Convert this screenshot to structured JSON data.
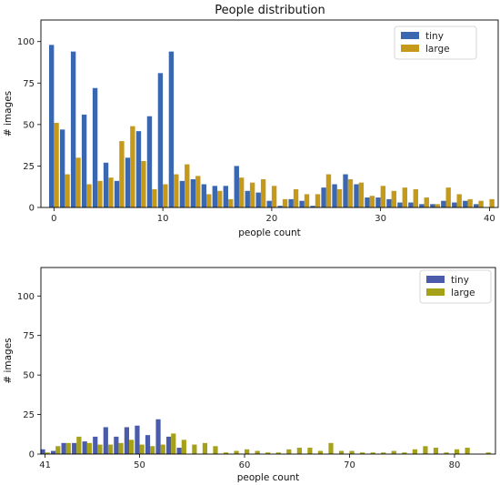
{
  "chart_data": [
    {
      "type": "bar",
      "title": "People distribution",
      "xlabel": "people count",
      "ylabel": "# images",
      "xlim": [
        -1.2,
        40.8
      ],
      "ylim": [
        0,
        113
      ],
      "xticks": [
        0,
        10,
        20,
        30,
        40
      ],
      "yticks": [
        0,
        25,
        50,
        75,
        100
      ],
      "legend_position": "top-right",
      "x": [
        0,
        1,
        2,
        3,
        4,
        5,
        6,
        7,
        8,
        9,
        10,
        11,
        12,
        13,
        14,
        15,
        16,
        17,
        18,
        19,
        20,
        21,
        22,
        23,
        24,
        25,
        26,
        27,
        28,
        29,
        30,
        31,
        32,
        33,
        34,
        35,
        36,
        37,
        38,
        39,
        40
      ],
      "series": [
        {
          "name": "tiny",
          "color": "#3b67b0",
          "values": [
            98,
            47,
            94,
            56,
            72,
            27,
            16,
            30,
            46,
            55,
            81,
            94,
            16,
            17,
            14,
            13,
            13,
            25,
            10,
            9,
            4,
            1,
            5,
            4,
            1,
            12,
            14,
            20,
            14,
            6,
            6,
            5,
            3,
            3,
            2,
            2,
            4,
            3,
            4,
            2,
            0
          ]
        },
        {
          "name": "large",
          "color": "#c59a1a",
          "values": [
            51,
            20,
            30,
            14,
            16,
            18,
            40,
            49,
            28,
            11,
            14,
            20,
            26,
            19,
            8,
            10,
            5,
            18,
            15,
            17,
            13,
            5,
            11,
            8,
            8,
            20,
            11,
            17,
            15,
            7,
            13,
            10,
            12,
            11,
            6,
            2,
            12,
            8,
            5,
            4,
            5
          ]
        }
      ]
    },
    {
      "type": "bar",
      "title": "",
      "xlabel": "people count",
      "ylabel": "# images",
      "xlim": [
        40.6,
        83.9
      ],
      "ylim": [
        0,
        118
      ],
      "xticks": [
        41,
        50,
        60,
        70,
        80
      ],
      "yticks": [
        0,
        25,
        50,
        75,
        100
      ],
      "legend_position": "top-right",
      "x": [
        41,
        42,
        43,
        44,
        45,
        46,
        47,
        48,
        49,
        50,
        51,
        52,
        53,
        54,
        55,
        56,
        57,
        58,
        59,
        60,
        61,
        62,
        63,
        64,
        65,
        66,
        67,
        68,
        69,
        70,
        71,
        72,
        73,
        74,
        75,
        76,
        77,
        78,
        79,
        80,
        81,
        82,
        83
      ],
      "series": [
        {
          "name": "tiny",
          "color": "#4a5bab",
          "values": [
            3,
            2,
            7,
            7,
            8,
            11,
            17,
            11,
            17,
            18,
            12,
            22,
            11,
            4,
            0,
            0,
            0,
            0,
            0,
            0,
            0,
            0,
            0,
            0,
            0,
            0,
            0,
            0,
            0,
            0,
            0,
            0,
            0,
            0,
            0,
            0,
            0,
            0,
            0,
            0,
            0,
            0,
            0
          ]
        },
        {
          "name": "large",
          "color": "#a5a118",
          "values": [
            1,
            5,
            7,
            11,
            7,
            6,
            6,
            7,
            9,
            6,
            5,
            6,
            13,
            9,
            6,
            7,
            5,
            1,
            2,
            3,
            2,
            1,
            1,
            3,
            4,
            4,
            2,
            7,
            2,
            2,
            1,
            1,
            1,
            2,
            1,
            3,
            5,
            4,
            1,
            3,
            4,
            0,
            1
          ]
        }
      ]
    }
  ]
}
